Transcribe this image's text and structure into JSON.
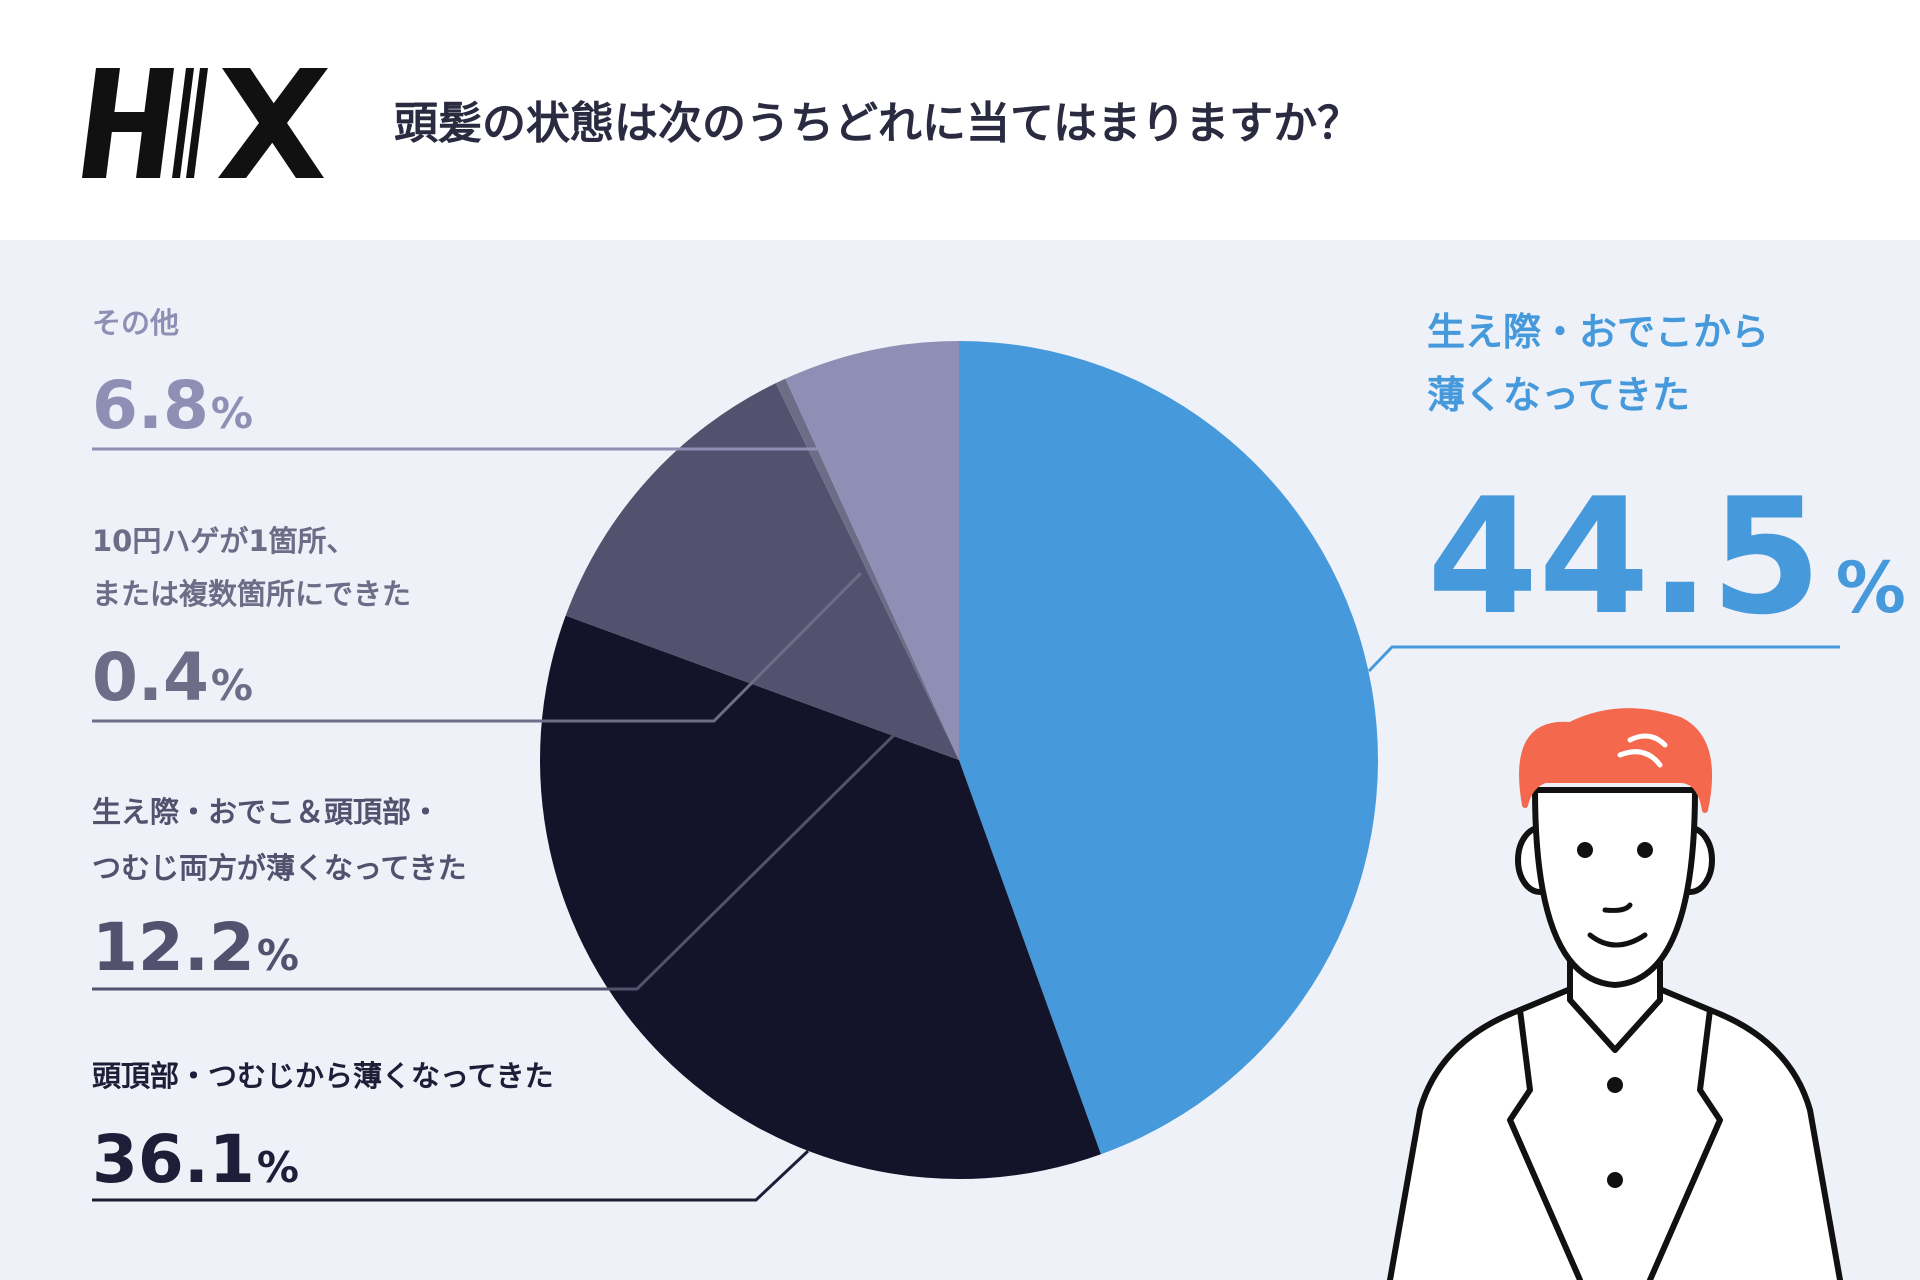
{
  "chart_data": {
    "type": "pie",
    "title": "頭髪の状態は次のうちどれに当てはまりますか？",
    "categories": [
      "生え際・おでこから\n薄くなってきた",
      "頭頂部・つむじから薄くなってきた",
      "生え際・おでこ＆頭頂部・\nつむじ両方が薄くなってきた",
      "10円ハゲが1箇所、\nまたは複数箇所にできた",
      "その他"
    ],
    "values": [
      44.5,
      36.1,
      12.2,
      0.4,
      6.8
    ],
    "value_labels": [
      "44.5%",
      "36.1%",
      "12.2%",
      "0.4%",
      "6.8%"
    ],
    "colors": [
      "#4699db",
      "#13132a",
      "#52526f",
      "#6d6d88",
      "#8f8fb5"
    ]
  }
}
